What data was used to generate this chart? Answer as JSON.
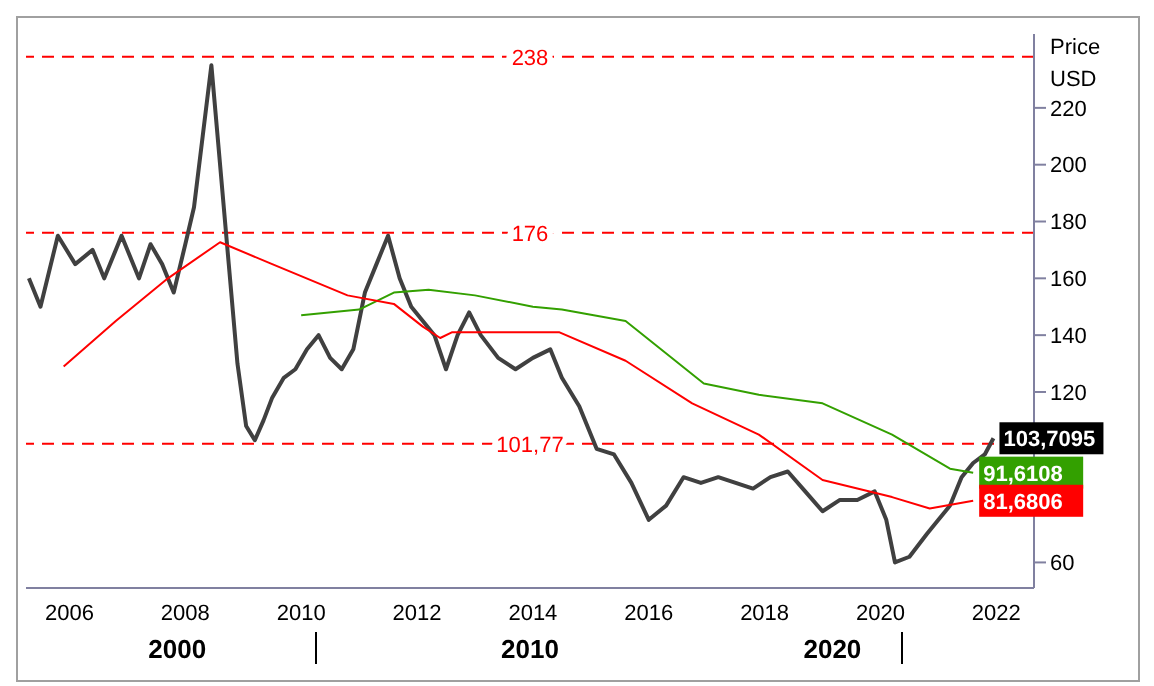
{
  "chart_data": {
    "type": "line",
    "ylabel": "Price USD",
    "xlim": [
      2005.25,
      2022.65
    ],
    "xticks": [
      2006,
      2008,
      2010,
      2012,
      2014,
      2016,
      2018,
      2020,
      2022
    ],
    "ylim": [
      51,
      246
    ],
    "yticks": [
      60,
      120,
      140,
      160,
      180,
      200,
      220
    ],
    "marker": "none",
    "line_style": "solid",
    "ref_lines": [
      {
        "axis": "y",
        "value": 238,
        "label": "238",
        "color": "#ff0000",
        "line_style": "dashed"
      },
      {
        "axis": "y",
        "value": 176,
        "label": "176",
        "color": "#ff0000",
        "line_style": "dashed"
      },
      {
        "axis": "y",
        "value": 101.77,
        "label": "101,77",
        "color": "#ff0000",
        "line_style": "dashed"
      }
    ],
    "annotations": [
      "2000",
      "2010",
      "2020"
    ],
    "series": [
      {
        "color": "#404040",
        "x": [
          2005.3,
          2005.5,
          2005.8,
          2006.1,
          2006.4,
          2006.6,
          2006.9,
          2007.2,
          2007.4,
          2007.6,
          2007.8,
          2008.0,
          2008.15,
          2008.3,
          2008.45,
          2008.6,
          2008.75,
          2008.9,
          2009.05,
          2009.2,
          2009.35,
          2009.5,
          2009.7,
          2009.9,
          2010.1,
          2010.3,
          2010.5,
          2010.7,
          2010.9,
          2011.1,
          2011.3,
          2011.5,
          2011.7,
          2011.9,
          2012.1,
          2012.3,
          2012.5,
          2012.7,
          2012.9,
          2013.1,
          2013.4,
          2013.7,
          2014.0,
          2014.3,
          2014.5,
          2014.8,
          2015.1,
          2015.4,
          2015.7,
          2016.0,
          2016.3,
          2016.6,
          2016.9,
          2017.2,
          2017.5,
          2017.8,
          2018.1,
          2018.4,
          2018.7,
          2019.0,
          2019.3,
          2019.6,
          2019.9,
          2020.1,
          2020.25,
          2020.5,
          2020.8,
          2021.0,
          2021.2,
          2021.4,
          2021.6,
          2021.8,
          2021.95
        ],
        "values": [
          160,
          150,
          175,
          165,
          170,
          160,
          175,
          160,
          172,
          165,
          155,
          172,
          185,
          210,
          235,
          200,
          165,
          130,
          108,
          103,
          110,
          118,
          125,
          128,
          135,
          140,
          132,
          128,
          135,
          155,
          165,
          175,
          160,
          150,
          145,
          140,
          128,
          140,
          148,
          140,
          132,
          128,
          132,
          135,
          125,
          115,
          100,
          98,
          88,
          75,
          80,
          90,
          88,
          90,
          88,
          86,
          90,
          92,
          85,
          78,
          82,
          82,
          85,
          75,
          60,
          62,
          70,
          75,
          80,
          90,
          95,
          98,
          103.7
        ],
        "value_labels": [
          null,
          null,
          null,
          null,
          null,
          null,
          null,
          null,
          null,
          null,
          null,
          null,
          null,
          null,
          null,
          null,
          null,
          null,
          null,
          null,
          null,
          null,
          null,
          null,
          null,
          null,
          null,
          null,
          null,
          null,
          null,
          null,
          null,
          null,
          null,
          null,
          null,
          null,
          null,
          null,
          null,
          null,
          null,
          null,
          null,
          null,
          null,
          null,
          null,
          null,
          null,
          null,
          null,
          null,
          null,
          null,
          null,
          null,
          null,
          null,
          null,
          null,
          null,
          null,
          null,
          null,
          null,
          null,
          null,
          null,
          null,
          null,
          "103,7095"
        ]
      },
      {
        "color": "#33a000",
        "x": [
          2010.0,
          2011.0,
          2011.6,
          2012.2,
          2013.0,
          2014.0,
          2014.5,
          2015.6,
          2016.95,
          2017.9,
          2019.0,
          2020.2,
          2021.2,
          2021.6
        ],
        "values": [
          147,
          149,
          155,
          156,
          154,
          150,
          149,
          145,
          123,
          119,
          116,
          105,
          93,
          91.6
        ],
        "value_labels": [
          null,
          null,
          null,
          null,
          null,
          null,
          null,
          null,
          null,
          null,
          null,
          null,
          null,
          "91,6108"
        ]
      },
      {
        "color": "#ff0000",
        "x": [
          2005.9,
          2006.8,
          2007.7,
          2008.6,
          2009.5,
          2010.8,
          2011.6,
          2012.1,
          2012.4,
          2012.6,
          2013.3,
          2014.46,
          2015.6,
          2016.75,
          2017.9,
          2019.0,
          2020.2,
          2020.85,
          2021.6
        ],
        "values": [
          129,
          145,
          160,
          172.7,
          165,
          154,
          151,
          143,
          139,
          141,
          141,
          141,
          131,
          116,
          105,
          89,
          83,
          79,
          81.7
        ],
        "value_labels": [
          null,
          null,
          null,
          null,
          null,
          null,
          null,
          null,
          null,
          null,
          null,
          null,
          null,
          null,
          null,
          null,
          null,
          null,
          "81,6806"
        ]
      }
    ]
  }
}
